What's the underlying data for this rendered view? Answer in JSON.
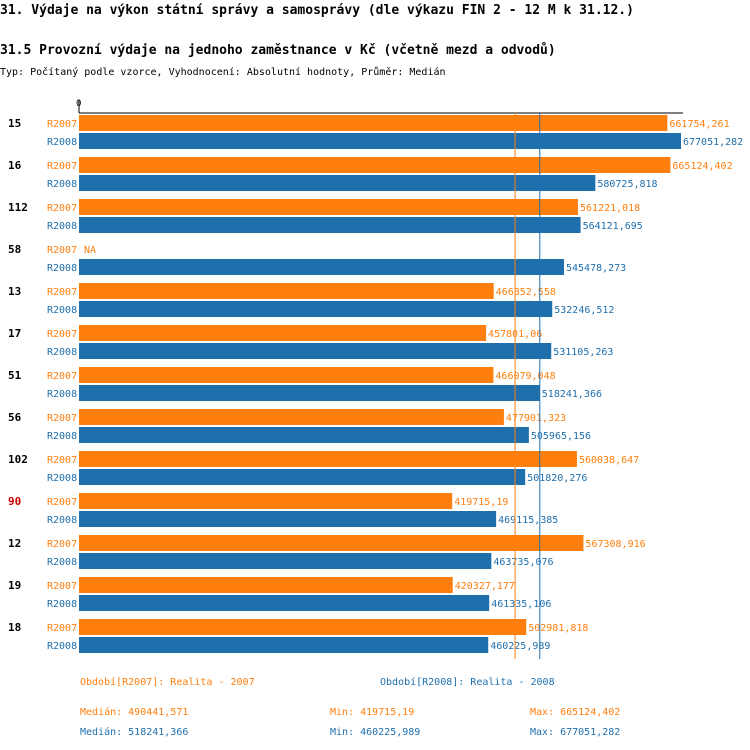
{
  "title": "31. Výdaje na výkon státní správy a samosprávy (dle výkazu FIN 2 - 12 M k 31.12.)",
  "subtitle": "31.5 Provozní výdaje na jednoho zaměstnance v Kč (včetně mezd a odvodů)",
  "type_line": "Typ: Počítaný podle vzorce, Vyhodnocení: Absolutní hodnoty, Průměr: Medián",
  "colors": {
    "r2007": "#ff7f0e",
    "r2008": "#1f6fad",
    "highlight": "#cc0000"
  },
  "chart_data": {
    "type": "bar",
    "orientation": "horizontal",
    "title": "31.5 Provozní výdaje na jednoho zaměstnance v Kč (včetně mezd a odvodů)",
    "axis_zero_label": "0",
    "xlim": [
      0,
      677051.282
    ],
    "series_names": [
      "R2007",
      "R2008"
    ],
    "categories": [
      {
        "label": "15",
        "highlight": false,
        "R2007": 661754.261,
        "R2007_label": "661754,261",
        "R2008": 677051.282,
        "R2008_label": "677051,282"
      },
      {
        "label": "16",
        "highlight": false,
        "R2007": 665124.402,
        "R2007_label": "665124,402",
        "R2008": 580725.818,
        "R2008_label": "580725,818"
      },
      {
        "label": "112",
        "highlight": false,
        "R2007": 561221.018,
        "R2007_label": "561221,018",
        "R2008": 564121.695,
        "R2008_label": "564121,695"
      },
      {
        "label": "58",
        "highlight": false,
        "R2007": null,
        "R2007_label": "NA",
        "R2008": 545478.273,
        "R2008_label": "545478,273"
      },
      {
        "label": "13",
        "highlight": false,
        "R2007": 466352.558,
        "R2007_label": "466352,558",
        "R2008": 532246.512,
        "R2008_label": "532246,512"
      },
      {
        "label": "17",
        "highlight": false,
        "R2007": 457801.06,
        "R2007_label": "457801,06",
        "R2008": 531105.263,
        "R2008_label": "531105,263"
      },
      {
        "label": "51",
        "highlight": false,
        "R2007": 466079.048,
        "R2007_label": "466079,048",
        "R2008": 518241.366,
        "R2008_label": "518241,366"
      },
      {
        "label": "56",
        "highlight": false,
        "R2007": 477901.323,
        "R2007_label": "477901,323",
        "R2008": 505965.156,
        "R2008_label": "505965,156"
      },
      {
        "label": "102",
        "highlight": false,
        "R2007": 560038.647,
        "R2007_label": "560038,647",
        "R2008": 501820.276,
        "R2008_label": "501820,276"
      },
      {
        "label": "90",
        "highlight": true,
        "R2007": 419715.19,
        "R2007_label": "419715,19",
        "R2008": 469115.385,
        "R2008_label": "469115,385"
      },
      {
        "label": "12",
        "highlight": false,
        "R2007": 567308.916,
        "R2007_label": "567308,916",
        "R2008": 463735.076,
        "R2008_label": "463735,076"
      },
      {
        "label": "19",
        "highlight": false,
        "R2007": 420327.177,
        "R2007_label": "420327,177",
        "R2008": 461335.106,
        "R2008_label": "461335,106"
      },
      {
        "label": "18",
        "highlight": false,
        "R2007": 502981.818,
        "R2007_label": "502981,818",
        "R2008": 460225.989,
        "R2008_label": "460225,989"
      }
    ],
    "median_lines": {
      "R2007": 490441.571,
      "R2008": 518241.366
    }
  },
  "legend": {
    "r2007": {
      "period": "Období[R2007]: Realita - 2007",
      "median": "Medián: 490441,571",
      "min": "Min: 419715,19",
      "max": "Max: 665124,402"
    },
    "r2008": {
      "period": "Období[R2008]: Realita - 2008",
      "median": "Medián: 518241,366",
      "min": "Min: 460225,989",
      "max": "Max: 677051,282"
    }
  }
}
